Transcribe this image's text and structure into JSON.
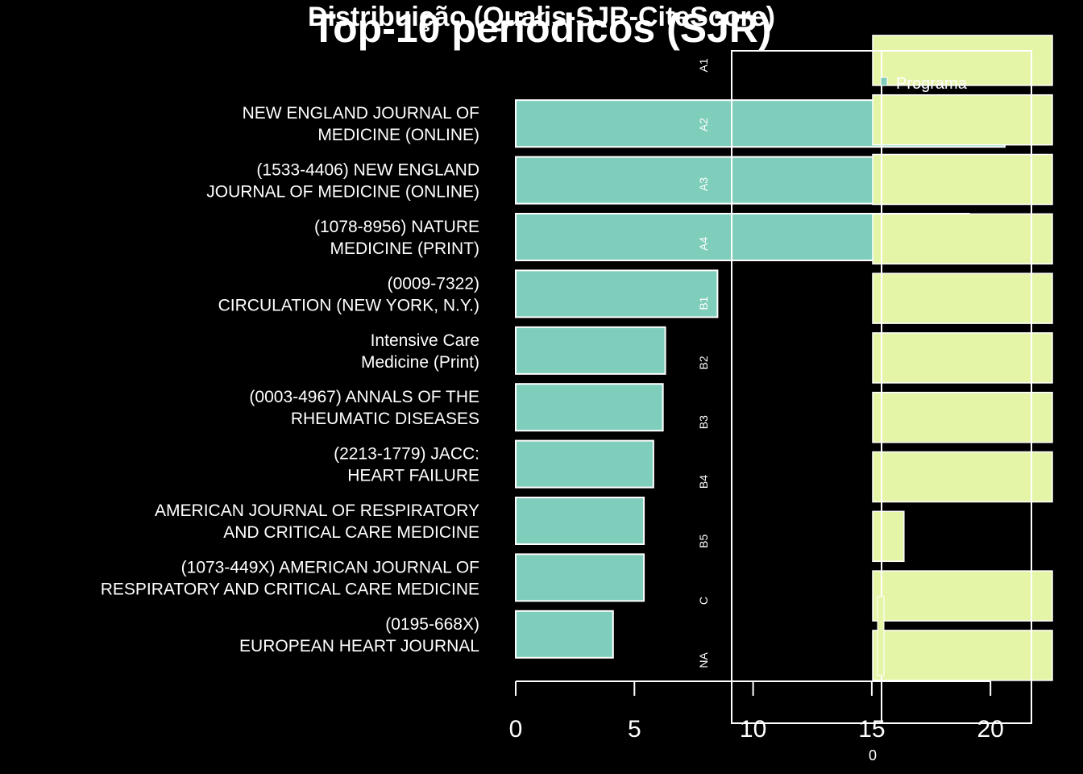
{
  "chart_data": [
    {
      "type": "bar",
      "orientation": "horizontal",
      "title": "Top-10 periódicos (SJR)",
      "categories": [
        "NEW ENGLAND JOURNAL OF\nMEDICINE (ONLINE)",
        "(1533-4406) NEW ENGLAND\nJOURNAL OF MEDICINE (ONLINE)",
        "(1078-8956) NATURE\nMEDICINE (PRINT)",
        "(0009-7322)\nCIRCULATION (NEW YORK, N.Y.)",
        "Intensive Care\nMedicine (Print)",
        "(0003-4967) ANNALS OF THE\nRHEUMATIC DISEASES",
        "(2213-1779) JACC:\nHEART FAILURE",
        "AMERICAN JOURNAL OF RESPIRATORY\nAND CRITICAL CARE MEDICINE",
        "(1073-449X) AMERICAN JOURNAL OF\nRESPIRATORY AND CRITICAL CARE MEDICINE",
        "(0195-668X)\nEUROPEAN HEART JOURNAL"
      ],
      "values": [
        20.6,
        20.6,
        19.1,
        8.5,
        6.3,
        6.2,
        5.8,
        5.4,
        5.4,
        4.1
      ],
      "xlim": [
        0,
        22.2
      ],
      "xticks": [
        "0",
        "5",
        "10",
        "15",
        "20"
      ],
      "bar_color": "#7fcdbb",
      "grid": false
    },
    {
      "type": "bar",
      "orientation": "horizontal",
      "title": "Distribuição (Qualis-SJR-CiteScore)",
      "categories": [
        "A1",
        "A2",
        "A3",
        "A4",
        "B1",
        "B2",
        "B3",
        "B4",
        "B5",
        "C",
        "NA"
      ],
      "series": [
        {
          "name": "Programa",
          "color": "#e5f5a8",
          "values": [
            50,
            50,
            50,
            50,
            50,
            50,
            50,
            50,
            8.7,
            50,
            50
          ]
        }
      ],
      "xticks": [
        "0"
      ],
      "legend_position": "top-left",
      "grid": false
    }
  ]
}
